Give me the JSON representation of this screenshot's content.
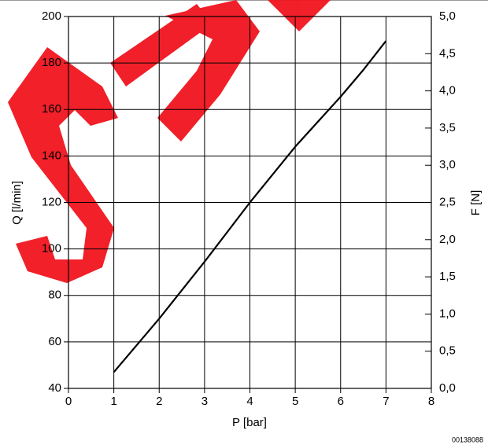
{
  "chart_data": {
    "type": "line",
    "x_label": "P [bar]",
    "y_label": "Q [l/min]",
    "y2_label": "F [N]",
    "code": "00138088",
    "x": [
      1,
      2,
      3,
      4,
      5,
      6,
      6.5,
      7
    ],
    "series": [
      {
        "color": "#000000",
        "values": [
          47,
          70,
          94.5,
          120,
          144,
          165.5,
          177,
          189.5
        ]
      }
    ],
    "xlim": [
      0,
      8
    ],
    "xticks": [
      0,
      1,
      2,
      3,
      4,
      5,
      6,
      7,
      8
    ],
    "ylim": [
      40,
      200
    ],
    "yticks": [
      40,
      60,
      80,
      100,
      120,
      140,
      160,
      180,
      200
    ],
    "y2lim": [
      0,
      5
    ],
    "y2ticks": [
      {
        "value": 0,
        "label": "0,0"
      },
      {
        "value": 0.5,
        "label": "0,5"
      },
      {
        "value": 1,
        "label": "1,0"
      },
      {
        "value": 1.5,
        "label": "1,5"
      },
      {
        "value": 2,
        "label": "2,0"
      },
      {
        "value": 2.5,
        "label": "2,5"
      },
      {
        "value": 3,
        "label": "3,0"
      },
      {
        "value": 3.5,
        "label": "3,5"
      },
      {
        "value": 4,
        "label": "4,0"
      },
      {
        "value": 4.5,
        "label": "4,5"
      },
      {
        "value": 5,
        "label": "5,0"
      }
    ],
    "grid": true
  }
}
